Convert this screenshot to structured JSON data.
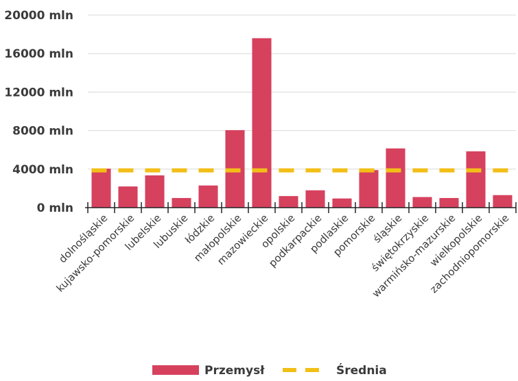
{
  "chart_data": {
    "type": "bar",
    "categories": [
      "dolnośląskie",
      "kujawsko-pomorskie",
      "lubelskie",
      "lubuskie",
      "łódzkie",
      "małopolskie",
      "mazowieckie",
      "opolskie",
      "podkarpackie",
      "podlaskie",
      "pomorskie",
      "śląskie",
      "świętokrzyskie",
      "warmińsko-mazurskie",
      "wielkopolskie",
      "zachodniopomorskie"
    ],
    "series": [
      {
        "name": "Przemysł",
        "type": "bar",
        "color": "#d6415e",
        "values": [
          4050,
          2200,
          3350,
          1000,
          2300,
          8050,
          17600,
          1200,
          1800,
          950,
          3900,
          6150,
          1100,
          1000,
          5850,
          1300
        ]
      },
      {
        "name": "Średnia",
        "type": "line",
        "style": "dashed",
        "color": "#f2bf17",
        "values": [
          3866,
          3866,
          3866,
          3866,
          3866,
          3866,
          3866,
          3866,
          3866,
          3866,
          3866,
          3866,
          3866,
          3866,
          3866,
          3866
        ]
      }
    ],
    "yticks": [
      "0 mln",
      "4000 mln",
      "8000 mln",
      "12000 mln",
      "16000 mln",
      "20000 mln"
    ],
    "ytick_values": [
      0,
      4000,
      8000,
      12000,
      16000,
      20000
    ],
    "ylim": [
      0,
      20000
    ],
    "grid": true,
    "legend_position": "bottom"
  }
}
